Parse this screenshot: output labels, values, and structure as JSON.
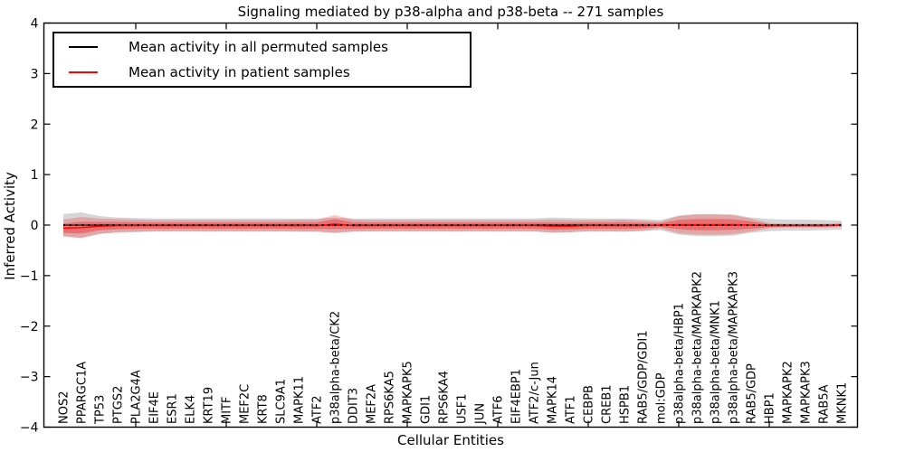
{
  "chart_data": {
    "type": "line",
    "title": "Signaling mediated by p38-alpha and p38-beta -- 271 samples",
    "xlabel": "Cellular Entities",
    "ylabel": "Inferred Activity",
    "ylim": [
      -4,
      4
    ],
    "grid": false,
    "legend_position": "upper left",
    "yticks": {
      "values": [
        4,
        3,
        2,
        1,
        0,
        -1,
        -2,
        -3,
        -4
      ],
      "labels": [
        "4",
        "3",
        "2",
        "1",
        "0",
        "−1",
        "−2",
        "−3",
        "−4"
      ]
    },
    "major_xtick_indices": [
      4,
      9,
      14,
      19,
      24,
      29,
      34,
      39
    ],
    "categories": [
      "NOS2",
      "PPARGC1A",
      "TP53",
      "PTGS2",
      "PLA2G4A",
      "EIF4E",
      "ESR1",
      "ELK4",
      "KRT19",
      "MITF",
      "MEF2C",
      "KRT8",
      "SLC9A1",
      "MAPK11",
      "ATF2",
      "p38alpha-beta/CK2",
      "DDIT3",
      "MEF2A",
      "RPS6KA5",
      "MAPKAPK5",
      "GDI1",
      "RPS6KA4",
      "USF1",
      "JUN",
      "ATF6",
      "EIF4EBP1",
      "ATF2/c-Jun",
      "MAPK14",
      "ATF1",
      "CEBPB",
      "CREB1",
      "HSPB1",
      "RAB5/GDP/GDI1",
      "mol:GDP",
      "p38alpha-beta/HBP1",
      "p38alpha-beta/MAPKAPK2",
      "p38alpha-beta/MNK1",
      "p38alpha-beta/MAPKAPK3",
      "RAB5/GDP",
      "HBP1",
      "MAPKAPK2",
      "MAPKAPK3",
      "RAB5A",
      "MKNK1"
    ],
    "series": [
      {
        "name": "Mean activity in all permuted samples",
        "color": "#000000",
        "values": [
          0,
          0,
          0,
          0,
          0,
          0,
          0,
          0,
          0,
          0,
          0,
          0,
          0,
          0,
          0,
          0,
          0,
          0,
          0,
          0,
          0,
          0,
          0,
          0,
          0,
          0,
          0,
          0,
          0,
          0,
          0,
          0,
          0,
          0,
          0,
          0,
          0,
          0,
          0,
          0,
          0,
          0,
          0,
          0
        ],
        "std": [
          0.22,
          0.25,
          0.18,
          0.15,
          0.14,
          0.13,
          0.13,
          0.13,
          0.13,
          0.13,
          0.13,
          0.13,
          0.13,
          0.13,
          0.13,
          0.15,
          0.13,
          0.13,
          0.13,
          0.13,
          0.13,
          0.13,
          0.13,
          0.13,
          0.13,
          0.13,
          0.13,
          0.15,
          0.14,
          0.13,
          0.13,
          0.13,
          0.12,
          0.1,
          0.19,
          0.22,
          0.22,
          0.21,
          0.15,
          0.12,
          0.11,
          0.11,
          0.1,
          0.09
        ]
      },
      {
        "name": "Mean activity in patient samples",
        "color": "#ff0000",
        "values": [
          -0.06,
          -0.05,
          -0.02,
          -0.01,
          -0.01,
          -0.01,
          -0.01,
          -0.01,
          -0.01,
          -0.01,
          -0.01,
          -0.01,
          -0.01,
          -0.01,
          -0.01,
          0.02,
          -0.01,
          -0.01,
          -0.01,
          -0.01,
          -0.01,
          -0.01,
          -0.01,
          -0.01,
          -0.01,
          -0.01,
          -0.01,
          -0.02,
          -0.02,
          -0.01,
          -0.01,
          -0.01,
          -0.01,
          0.0,
          0.01,
          0.01,
          0.01,
          0.01,
          0.0,
          -0.01,
          -0.01,
          -0.01,
          -0.01,
          0.0
        ],
        "std": [
          0.17,
          0.21,
          0.15,
          0.13,
          0.12,
          0.11,
          0.11,
          0.11,
          0.11,
          0.11,
          0.11,
          0.11,
          0.11,
          0.12,
          0.12,
          0.18,
          0.12,
          0.11,
          0.11,
          0.11,
          0.11,
          0.11,
          0.11,
          0.11,
          0.11,
          0.11,
          0.11,
          0.13,
          0.12,
          0.11,
          0.11,
          0.12,
          0.1,
          0.07,
          0.17,
          0.2,
          0.2,
          0.19,
          0.13,
          0.05,
          0.04,
          0.04,
          0.04,
          0.04
        ]
      }
    ],
    "legend": {
      "entries": [
        {
          "label": "Mean activity in all permuted samples",
          "color": "#000000"
        },
        {
          "label": "Mean activity in patient samples",
          "color": "#ff0000"
        }
      ]
    },
    "colors": {
      "axis": "#000000",
      "permuted_band_fill": "rgba(0,0,0,0.16)",
      "patient_band_outer_fill": "rgba(255,0,0,0.22)",
      "patient_band_inner_fill": "rgba(255,0,0,0.33)",
      "zero_dotted_line": "#000000"
    }
  }
}
